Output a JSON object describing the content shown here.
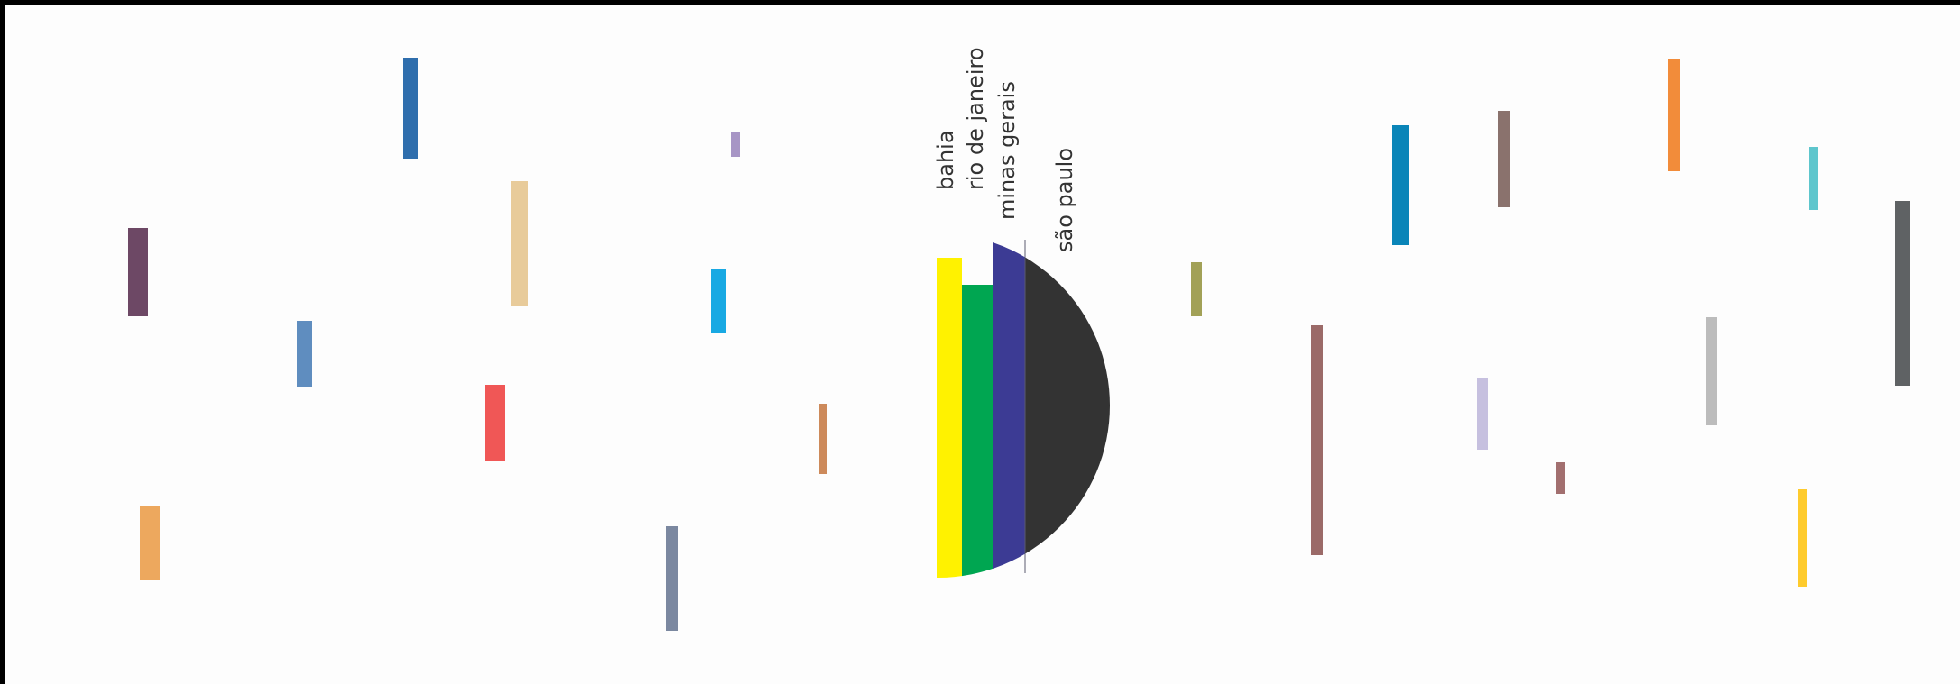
{
  "chart_data": {
    "type": "bar",
    "title": "",
    "xlabel": "",
    "ylabel": "",
    "grid": false,
    "legend": "none",
    "main_cluster": {
      "categories": [
        "bahia",
        "rio de janeiro",
        "minas gerais",
        "são paulo"
      ],
      "colors": [
        "#fff200",
        "#00a651",
        "#3c3b94",
        "#333333"
      ],
      "values": [
        380,
        350,
        400,
        330
      ],
      "note_shape": "bars clipped by a circle whose right half shows the são paulo segment"
    },
    "scattered_bars": [
      {
        "color": "#6d4865",
        "value": 98
      },
      {
        "color": "#eda85e",
        "value": 82
      },
      {
        "color": "#5f8dbf",
        "value": 73
      },
      {
        "color": "#2f6ead",
        "value": 112
      },
      {
        "color": "#f05756",
        "value": 85
      },
      {
        "color": "#e8cb9a",
        "value": 138
      },
      {
        "color": "#7b88a0",
        "value": 116
      },
      {
        "color": "#19a9e3",
        "value": 70
      },
      {
        "color": "#a795c5",
        "value": 28
      },
      {
        "color": "#cd8a5b",
        "value": 78
      },
      {
        "color": "#a2a157",
        "value": 60
      },
      {
        "color": "#9b6a68",
        "value": 255
      },
      {
        "color": "#0a85b8",
        "value": 133
      },
      {
        "color": "#8a726d",
        "value": 107
      },
      {
        "color": "#c6c0df",
        "value": 80
      },
      {
        "color": "#a26f6f",
        "value": 35
      },
      {
        "color": "#f28c3a",
        "value": 125
      },
      {
        "color": "#bcbcbc",
        "value": 120
      },
      {
        "color": "#fecb2d",
        "value": 108
      },
      {
        "color": "#5ec6cd",
        "value": 70
      },
      {
        "color": "#5f6264",
        "value": 205
      }
    ]
  }
}
